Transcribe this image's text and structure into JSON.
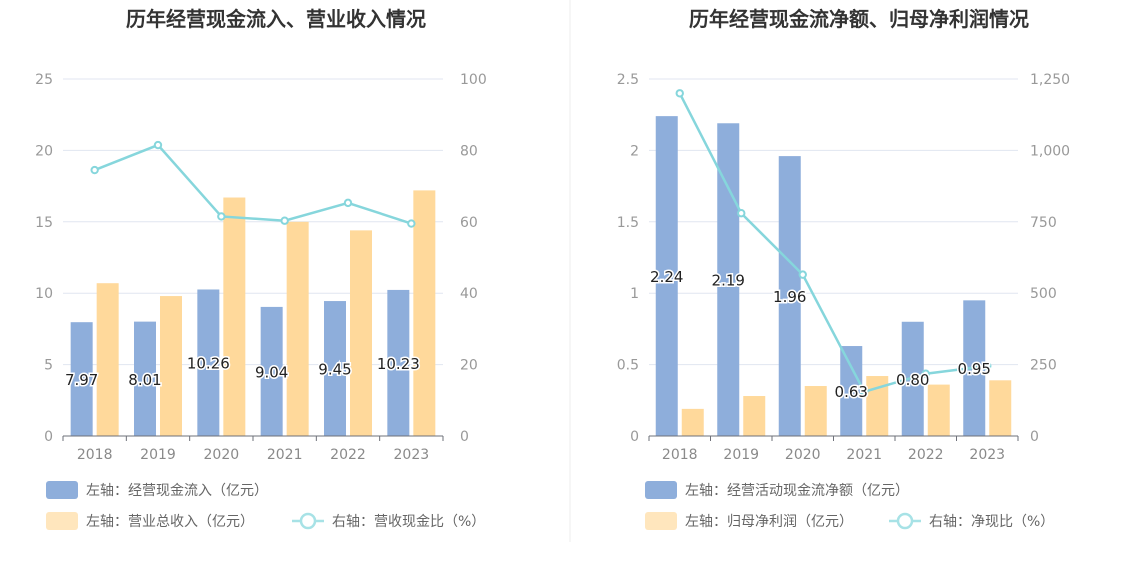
{
  "colors": {
    "bar_left": "#8eaedb",
    "bar_right": "#ffd99b",
    "line": "#86d6dc",
    "grid": "#e1e6f0",
    "divider": "#eeeeee"
  },
  "chart_data": [
    {
      "type": "bar",
      "title": "历年经营现金流入、营业收入情况",
      "categories": [
        "2018",
        "2019",
        "2020",
        "2021",
        "2022",
        "2023"
      ],
      "y_left": {
        "ylim": [
          0,
          25
        ],
        "ticks": [
          "0",
          "5",
          "10",
          "15",
          "20",
          "25"
        ]
      },
      "y_right": {
        "ylim": [
          0,
          100
        ],
        "ticks": [
          "0",
          "20",
          "40",
          "60",
          "80",
          "100"
        ]
      },
      "series": [
        {
          "name": "左轴：经营现金流入（亿元）",
          "type": "bar",
          "axis": "left",
          "values": [
            7.97,
            8.01,
            10.26,
            9.04,
            9.45,
            10.23
          ],
          "labels": [
            "7.97",
            "8.01",
            "10.26",
            "9.04",
            "9.45",
            "10.23"
          ]
        },
        {
          "name": "左轴：营业总收入（亿元）",
          "type": "bar",
          "axis": "left",
          "values": [
            10.7,
            9.8,
            16.7,
            15.0,
            14.4,
            17.2
          ]
        },
        {
          "name": "右轴：营收现金比（%）",
          "type": "line",
          "axis": "right",
          "values": [
            74.5,
            81.5,
            61.5,
            60.3,
            65.3,
            59.5
          ]
        }
      ]
    },
    {
      "type": "bar",
      "title": "历年经营现金流净额、归母净利润情况",
      "categories": [
        "2018",
        "2019",
        "2020",
        "2021",
        "2022",
        "2023"
      ],
      "y_left": {
        "ylim": [
          0,
          2.5
        ],
        "ticks": [
          "0",
          "0.5",
          "1",
          "1.5",
          "2",
          "2.5"
        ]
      },
      "y_right": {
        "ylim": [
          0,
          1250
        ],
        "ticks": [
          "0",
          "250",
          "500",
          "750",
          "1,000",
          "1,250"
        ]
      },
      "series": [
        {
          "name": "左轴：经营活动现金流净额（亿元）",
          "type": "bar",
          "axis": "left",
          "values": [
            2.24,
            2.19,
            1.96,
            0.63,
            0.8,
            0.95
          ],
          "labels": [
            "2.24",
            "2.19",
            "1.96",
            "0.63",
            "0.80",
            "0.95"
          ]
        },
        {
          "name": "左轴：归母净利润（亿元）",
          "type": "bar",
          "axis": "left",
          "values": [
            0.19,
            0.28,
            0.35,
            0.42,
            0.36,
            0.39
          ]
        },
        {
          "name": "右轴：净现比（%）",
          "type": "line",
          "axis": "right",
          "values": [
            1200,
            780,
            565,
            155,
            218,
            245
          ]
        }
      ]
    }
  ]
}
